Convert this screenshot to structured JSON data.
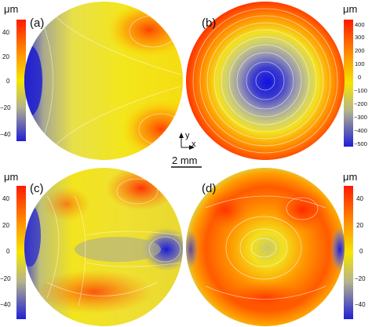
{
  "figure": {
    "unit_label": "μm",
    "scale_bar_label": "2 mm",
    "axis_y_label": "y",
    "axis_x_label": "x"
  },
  "panels": [
    {
      "id": "a",
      "label": "(a)",
      "colorbar": {
        "ticks": [
          "40",
          "20",
          "0",
          "−20",
          "−40"
        ]
      }
    },
    {
      "id": "b",
      "label": "(b)",
      "colorbar": {
        "ticks": [
          "400",
          "300",
          "200",
          "100",
          "0",
          "−100",
          "−200",
          "−300",
          "−400",
          "−500"
        ]
      }
    },
    {
      "id": "c",
      "label": "(c)",
      "colorbar": {
        "ticks": [
          "40",
          "20",
          "0",
          "−20",
          "−40"
        ]
      }
    },
    {
      "id": "d",
      "label": "(d)",
      "colorbar": {
        "ticks": [
          "40",
          "20",
          "0",
          "−20",
          "−40"
        ]
      }
    }
  ],
  "colors": {
    "high": "#ff1a00",
    "mid": "#f5e600",
    "neutral": "#b3b38c",
    "low": "#1f1fd6"
  }
}
